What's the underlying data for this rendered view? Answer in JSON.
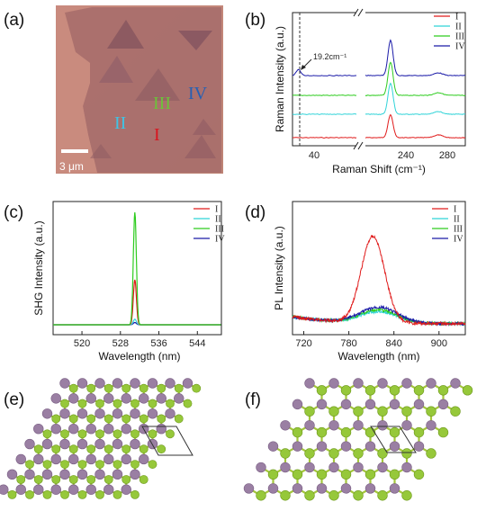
{
  "panels": {
    "a": "(a)",
    "b": "(b)",
    "c": "(c)",
    "d": "(d)",
    "e": "(e)",
    "f": "(f)"
  },
  "micrograph": {
    "scale_bar_label": "3 μm",
    "region_labels": [
      {
        "text": "I",
        "color": "#d9141e"
      },
      {
        "text": "II",
        "color": "#3ec4e6"
      },
      {
        "text": "III",
        "color": "#6cc23a"
      },
      {
        "text": "IV",
        "color": "#2660b4"
      }
    ]
  },
  "series_colors": {
    "I": "#e01b1b",
    "II": "#2fd3d8",
    "III": "#2ecc1f",
    "IV": "#1a1aa8"
  },
  "chart_data": [
    {
      "id": "b",
      "type": "line",
      "xlabel": "Raman Shift (cm⁻¹)",
      "ylabel": "Raman Intensity (a.u.)",
      "xticks": [
        "40",
        "240",
        "280"
      ],
      "axis_break": true,
      "annotation": "19.2cm⁻¹",
      "legend": [
        "I",
        "II",
        "III",
        "IV"
      ],
      "series": [
        {
          "name": "I",
          "peaks": [
            {
              "x": 240,
              "rel": 0.55
            }
          ]
        },
        {
          "name": "II",
          "peaks": [
            {
              "x": 240,
              "rel": 0.75
            }
          ]
        },
        {
          "name": "III",
          "peaks": [
            {
              "x": 240,
              "rel": 0.8
            }
          ]
        },
        {
          "name": "IV",
          "peaks": [
            {
              "x": 19.2,
              "rel": 0.15
            },
            {
              "x": 240,
              "rel": 0.85
            }
          ]
        }
      ]
    },
    {
      "id": "c",
      "type": "line",
      "xlabel": "Wavelength (nm)",
      "ylabel": "SHG Intensity (a.u.)",
      "xticks": [
        "520",
        "528",
        "536",
        "544"
      ],
      "xlim": [
        514,
        549
      ],
      "legend": [
        "I",
        "II",
        "III",
        "IV"
      ],
      "series": [
        {
          "name": "I",
          "peak_x": 531,
          "rel": 0.4
        },
        {
          "name": "II",
          "peak_x": 531,
          "rel": 0.05
        },
        {
          "name": "III",
          "peak_x": 531,
          "rel": 1.0
        },
        {
          "name": "IV",
          "peak_x": 531,
          "rel": 0.02
        }
      ]
    },
    {
      "id": "d",
      "type": "line",
      "xlabel": "Wavelength (nm)",
      "ylabel": "PL Intensity (a.u.)",
      "xticks": [
        "720",
        "780",
        "840",
        "900"
      ],
      "xlim": [
        705,
        935
      ],
      "legend": [
        "I",
        "II",
        "III",
        "IV"
      ],
      "series": [
        {
          "name": "I",
          "peak_x": 812,
          "rel": 1.0
        },
        {
          "name": "II",
          "peak_x": 820,
          "rel": 0.13
        },
        {
          "name": "III",
          "peak_x": 820,
          "rel": 0.15
        },
        {
          "name": "IV",
          "peak_x": 820,
          "rel": 0.18
        }
      ]
    }
  ],
  "lattice": {
    "purple_atom_color": "#9a7fa3",
    "green_atom_color": "#96c83a",
    "bond_color": "#a4c63c"
  }
}
